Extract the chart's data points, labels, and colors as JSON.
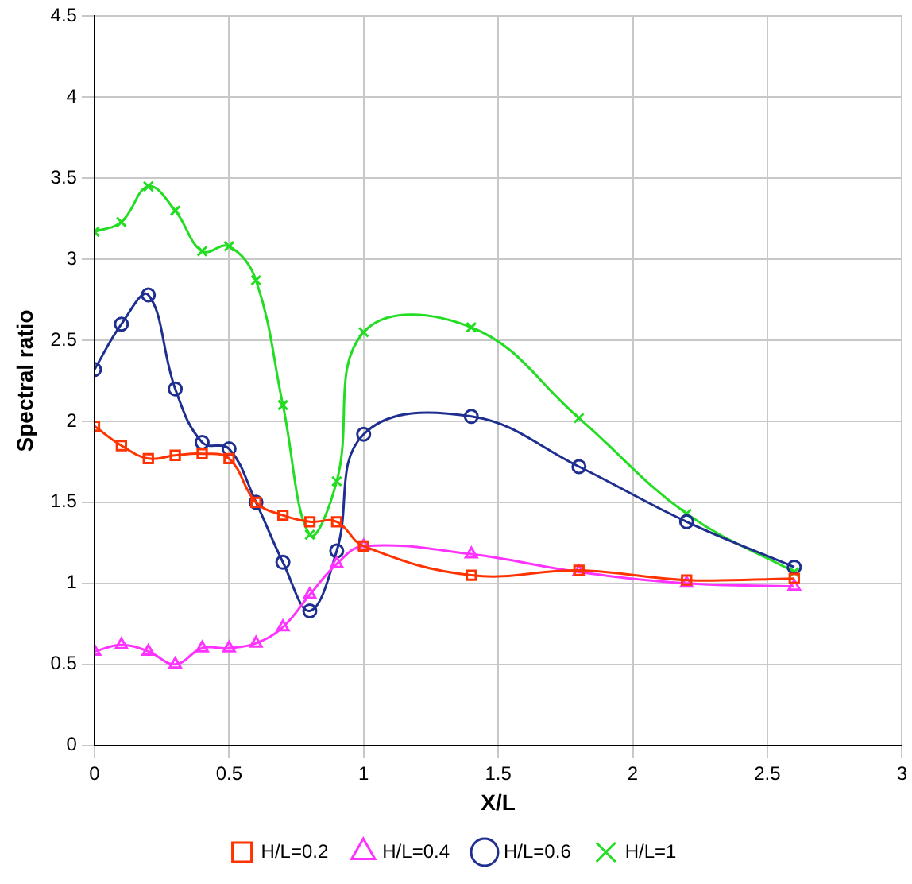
{
  "chart_data": {
    "type": "line",
    "xlabel": "X/L",
    "ylabel": "Spectral ratio",
    "x": [
      0,
      0.1,
      0.2,
      0.3,
      0.4,
      0.5,
      0.6,
      0.7,
      0.8,
      0.9,
      1.0,
      1.4,
      1.8,
      2.2,
      2.6
    ],
    "xlim": [
      0,
      3
    ],
    "xticks": [
      0,
      0.5,
      1,
      1.5,
      2,
      2.5,
      3
    ],
    "ylim": [
      0,
      4.5
    ],
    "yticks": [
      0,
      0.5,
      1,
      1.5,
      2,
      2.5,
      3,
      3.5,
      4,
      4.5
    ],
    "grid": true,
    "legend": "bottom",
    "series": [
      {
        "name": "H/L=0.2",
        "color": "#ff3300",
        "marker": "square",
        "values": [
          1.97,
          1.85,
          1.77,
          1.79,
          1.8,
          1.77,
          1.5,
          1.42,
          1.38,
          1.38,
          1.23,
          1.05,
          1.08,
          1.02,
          1.03
        ]
      },
      {
        "name": "H/L=0.4",
        "color": "#ff33ff",
        "marker": "triangle",
        "values": [
          0.58,
          0.62,
          0.58,
          0.5,
          0.6,
          0.6,
          0.63,
          0.73,
          0.93,
          1.12,
          1.23,
          1.18,
          1.07,
          1.0,
          0.98
        ]
      },
      {
        "name": "H/L=0.6",
        "color": "#1f2f8f",
        "marker": "circle",
        "values": [
          2.32,
          2.6,
          2.78,
          2.2,
          1.87,
          1.83,
          1.5,
          1.13,
          0.83,
          1.2,
          1.92,
          2.03,
          1.72,
          1.38,
          1.1
        ]
      },
      {
        "name": "H/L=1",
        "color": "#22dd22",
        "marker": "cross",
        "values": [
          3.17,
          3.23,
          3.45,
          3.3,
          3.05,
          3.08,
          2.87,
          2.1,
          1.3,
          1.63,
          2.55,
          2.58,
          2.02,
          1.43,
          1.07
        ]
      }
    ]
  }
}
